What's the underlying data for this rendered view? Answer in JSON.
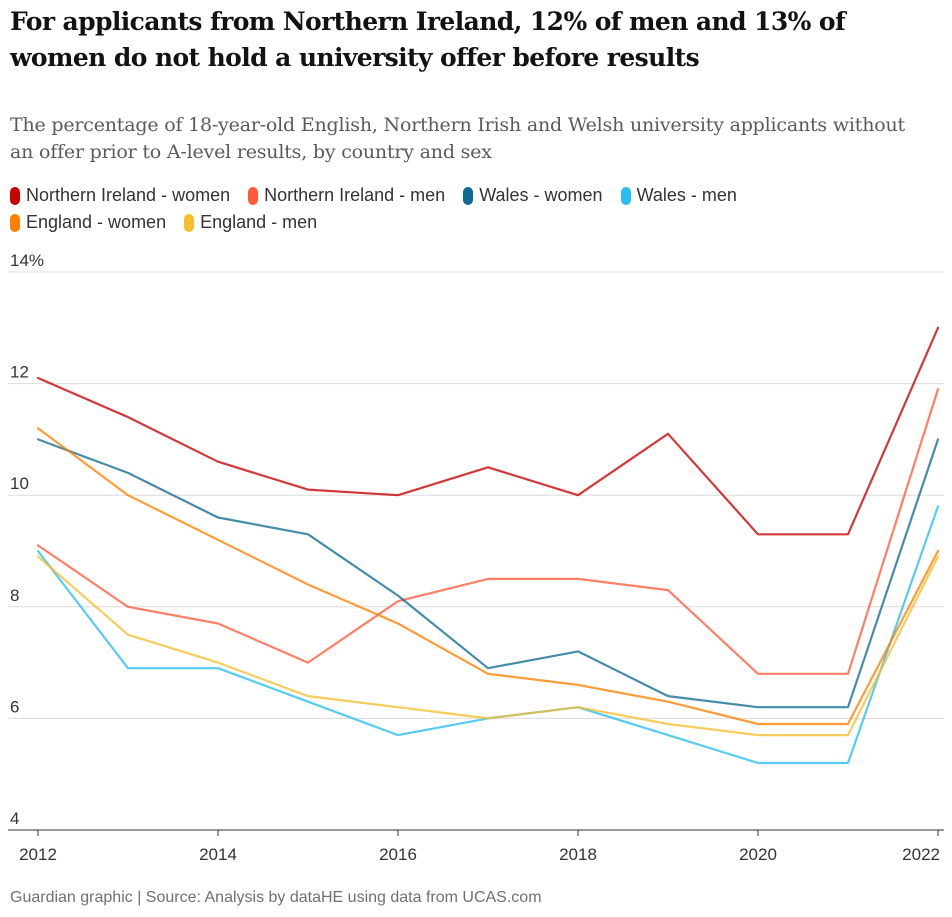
{
  "header": {
    "title": "For applicants from Northern Ireland, 12% of men and 13% of women do not hold a university offer before results",
    "subtitle": "The percentage of 18-year-old English, Northern Irish and Welsh university applicants without an offer prior to A-level results, by country and sex"
  },
  "footer": {
    "source": "Guardian graphic | Source: Analysis by dataHE using data from UCAS.com"
  },
  "chart_data": {
    "type": "line",
    "title": "For applicants from Northern Ireland, 12% of men and 13% of women do not hold a university offer before results",
    "xlabel": "",
    "ylabel": "",
    "x": [
      2012,
      2013,
      2014,
      2015,
      2016,
      2017,
      2018,
      2019,
      2020,
      2021,
      2022
    ],
    "xlim": [
      2012,
      2022
    ],
    "ylim": [
      4,
      14
    ],
    "x_ticks": [
      "2012",
      "2014",
      "2016",
      "2018",
      "2020",
      "2022"
    ],
    "x_tick_values": [
      2012,
      2014,
      2016,
      2018,
      2020,
      2022
    ],
    "y_ticks": [
      "4",
      "6",
      "8",
      "10",
      "12",
      "14%"
    ],
    "y_tick_values": [
      4,
      6,
      8,
      10,
      12,
      14
    ],
    "grid": true,
    "legend_position": "top-left",
    "series": [
      {
        "name": "Northern Ireland - women",
        "color": "#c70000",
        "values": [
          12.1,
          11.4,
          10.6,
          10.1,
          10.0,
          10.5,
          10.0,
          11.1,
          9.3,
          9.3,
          13.0
        ]
      },
      {
        "name": "Northern Ireland - men",
        "color": "#ff5b3a",
        "values": [
          9.1,
          8.0,
          7.7,
          7.0,
          8.1,
          8.5,
          8.5,
          8.3,
          6.8,
          6.8,
          11.9
        ]
      },
      {
        "name": "Wales - women",
        "color": "#0f6b94",
        "values": [
          11.0,
          10.4,
          9.6,
          9.3,
          8.2,
          6.9,
          7.2,
          6.4,
          6.2,
          6.2,
          11.0
        ]
      },
      {
        "name": "Wales - men",
        "color": "#27bdf0",
        "values": [
          9.0,
          6.9,
          6.9,
          6.3,
          5.7,
          6.0,
          6.2,
          5.7,
          5.2,
          5.2,
          9.8
        ]
      },
      {
        "name": "England - women",
        "color": "#ff7f00",
        "values": [
          11.2,
          10.0,
          9.2,
          8.4,
          7.7,
          6.8,
          6.6,
          6.3,
          5.9,
          5.9,
          9.0
        ]
      },
      {
        "name": "England - men",
        "color": "#f5be2c",
        "values": [
          8.9,
          7.5,
          7.0,
          6.4,
          6.2,
          6.0,
          6.2,
          5.9,
          5.7,
          5.7,
          8.9
        ]
      }
    ]
  }
}
